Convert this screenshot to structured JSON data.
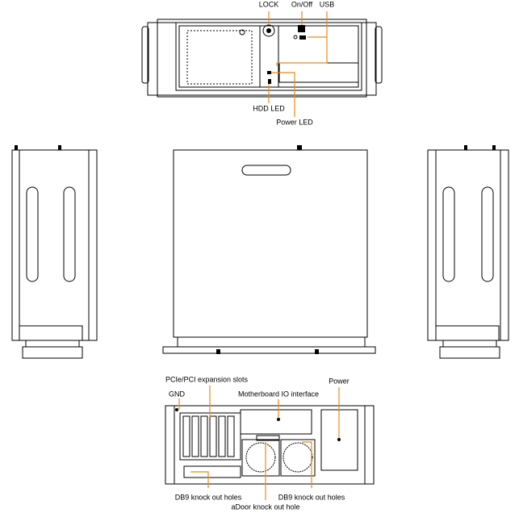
{
  "front_labels": {
    "lock": "LOCK",
    "on_off": "On/Off",
    "usb": "USB",
    "hdd_led": "HDD LED",
    "power_led": "Power LED"
  },
  "rear_labels": {
    "pcie": "PCIe/PCI expansion slots",
    "gnd": "GND",
    "motherboard_io": "Motherboard IO interface",
    "power": "Power",
    "db9_left": "DB9 knock out holes",
    "db9_right": "DB9 knock out holes",
    "door": "aDoor knock out hole"
  }
}
